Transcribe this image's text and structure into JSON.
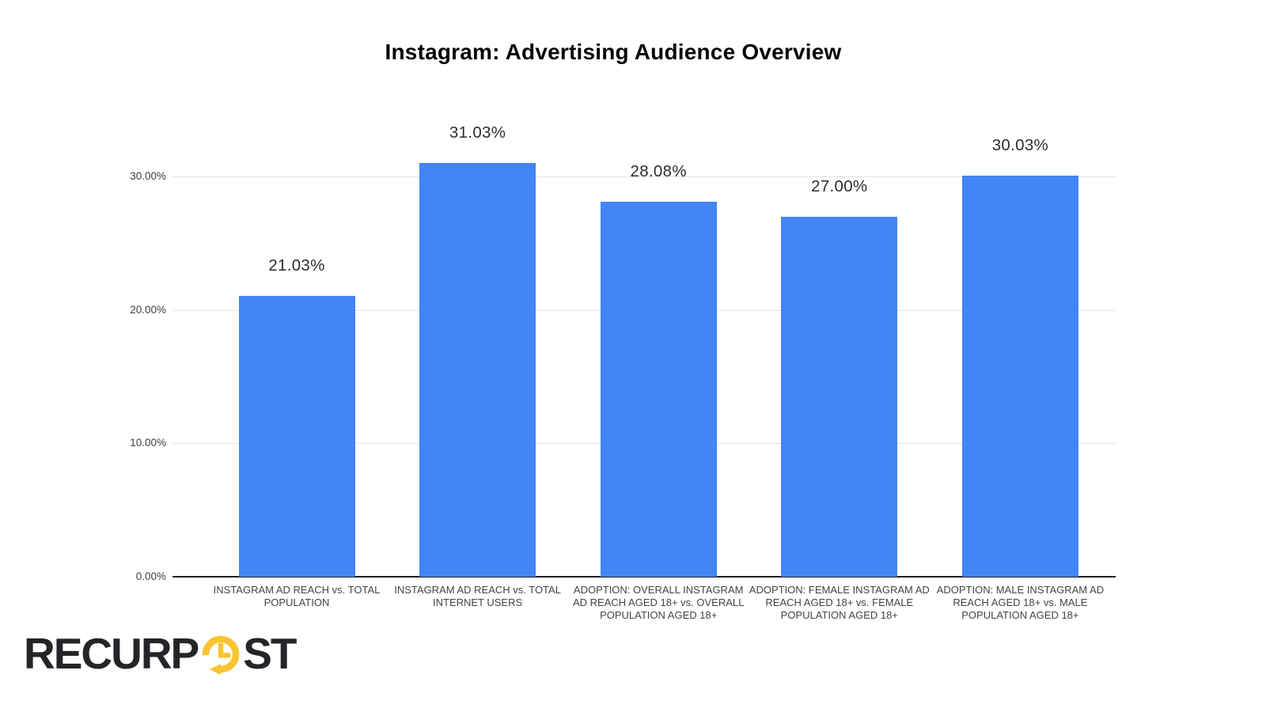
{
  "chart_data": {
    "type": "bar",
    "title": "Instagram: Advertising Audience Overview",
    "categories": [
      "INSTAGRAM AD REACH vs. TOTAL POPULATION",
      "INSTAGRAM AD REACH vs. TOTAL INTERNET USERS",
      "ADOPTION: OVERALL INSTAGRAM AD REACH AGED 18+ vs. OVERALL POPULATION AGED 18+",
      "ADOPTION: FEMALE INSTAGRAM AD REACH AGED 18+ vs. FEMALE POPULATION AGED 18+",
      "ADOPTION: MALE INSTAGRAM AD REACH AGED 18+ vs. MALE POPULATION AGED 18+"
    ],
    "values": [
      21.03,
      31.03,
      28.08,
      27.0,
      30.03
    ],
    "value_labels": [
      "21.03%",
      "31.03%",
      "28.08%",
      "27.00%",
      "30.03%"
    ],
    "y_axis": {
      "ticks": [
        {
          "value": 0,
          "label": "0.00%"
        },
        {
          "value": 10,
          "label": "10.00%"
        },
        {
          "value": 20,
          "label": "20.00%"
        },
        {
          "value": 30,
          "label": "30.00%"
        }
      ],
      "range": [
        0,
        33
      ]
    },
    "grid": true,
    "legend": "none",
    "colors": {
      "bar": "#4285F4",
      "gridline": "#e3e3e3",
      "axis": "#1f1f1f",
      "tick_text": "#3f3f3f",
      "value_text": "#2e2e2e",
      "category_text": "#444444",
      "title_text": "#050505"
    }
  },
  "branding": {
    "logo_text_left": "RECURP",
    "logo_text_right": "ST",
    "logo_dark": "#252428",
    "logo_yellow": "#F9C433"
  }
}
